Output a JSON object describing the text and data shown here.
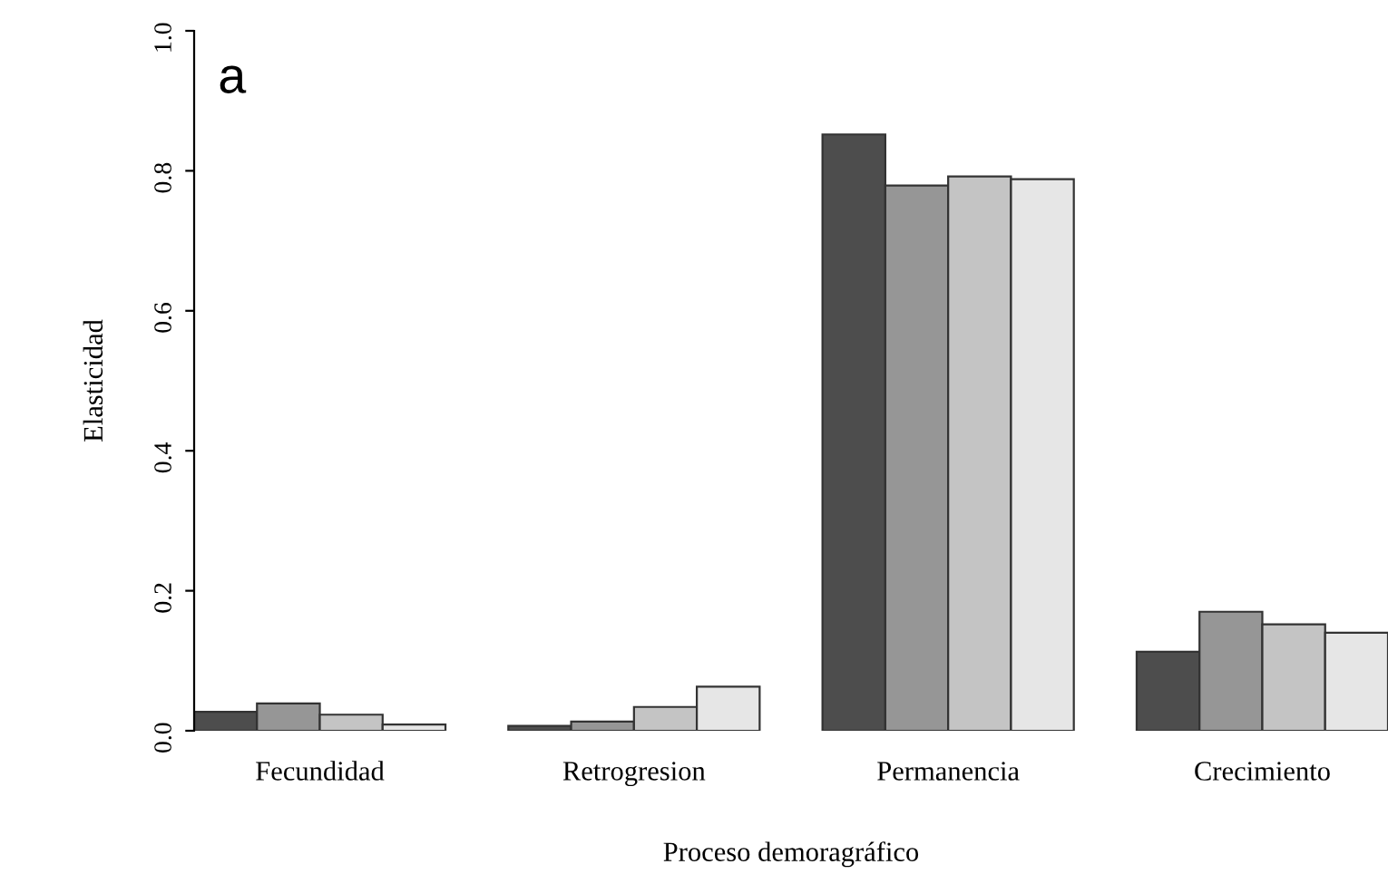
{
  "chart_data": {
    "type": "bar",
    "xlabel": "Proceso demoragráfico",
    "ylabel": "Elasticidad",
    "categories": [
      "Fecundidad",
      "Retrogresion",
      "Permanencia",
      "Crecimiento"
    ],
    "series": [
      {
        "color": "#4d4d4d",
        "values": [
          0.027,
          0.007,
          0.852,
          0.113
        ]
      },
      {
        "color": "#969696",
        "values": [
          0.039,
          0.013,
          0.779,
          0.17
        ]
      },
      {
        "color": "#c4c4c4",
        "values": [
          0.023,
          0.034,
          0.792,
          0.152
        ]
      },
      {
        "color": "#e6e6e6",
        "values": [
          0.009,
          0.063,
          0.788,
          0.14
        ]
      }
    ],
    "ylim": [
      0,
      1
    ],
    "yticks": [
      {
        "value": 0,
        "label": "0.0"
      },
      0.2,
      0.4,
      0.6,
      0.8,
      {
        "value": 1,
        "label": "1.0"
      }
    ],
    "grid": false,
    "annotations": [
      "a"
    ]
  }
}
